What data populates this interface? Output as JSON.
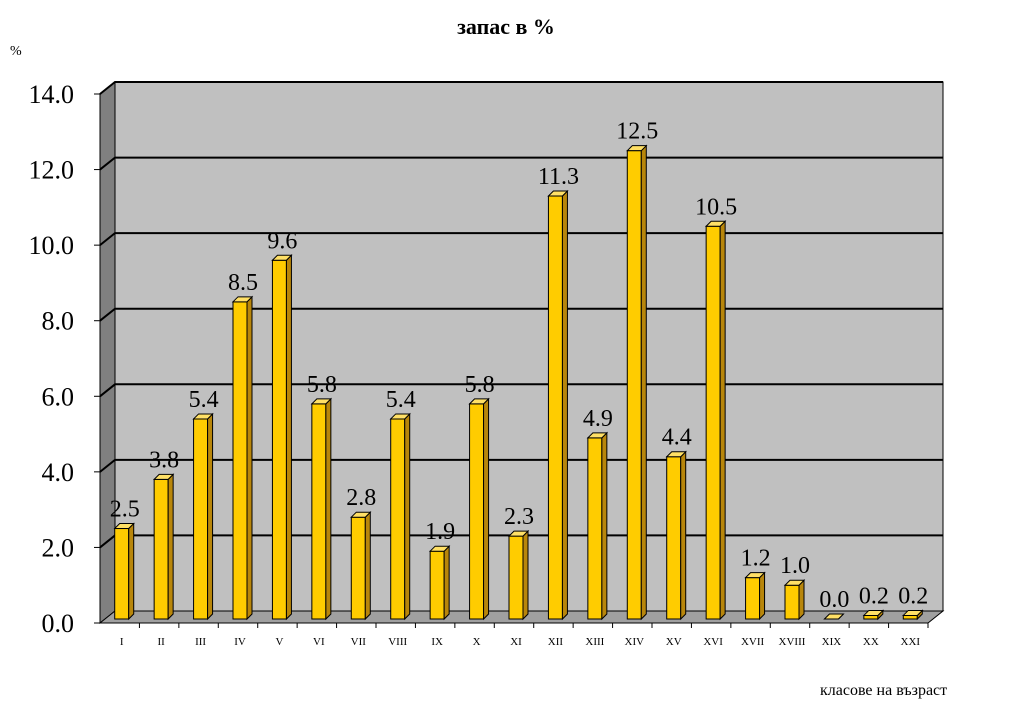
{
  "chart_data": {
    "type": "bar",
    "title": "запас в %",
    "ylabel": "%",
    "xlabel": "класове на възраст",
    "categories": [
      "I",
      "II",
      "III",
      "IV",
      "V",
      "VI",
      "VII",
      "VIII",
      "IX",
      "X",
      "XI",
      "XII",
      "XIII",
      "XIV",
      "XV",
      "XVI",
      "XVII",
      "XVIII",
      "XIX",
      "XX",
      "XXI"
    ],
    "values": [
      2.5,
      3.8,
      5.4,
      8.5,
      9.6,
      5.8,
      2.8,
      5.4,
      1.9,
      5.8,
      2.3,
      11.3,
      4.9,
      12.5,
      4.4,
      10.5,
      1.2,
      1.0,
      0.0,
      0.2,
      0.2
    ],
    "data_labels": [
      "2.5",
      "3.8",
      "5.4",
      "8.5",
      "9.6",
      "5.8",
      "2.8",
      "5.4",
      "1.9",
      "5.8",
      "2.3",
      "11.3",
      "4.9",
      "12.5",
      "4.4",
      "10.5",
      "1.2",
      "1.0",
      "0.0",
      "0.2",
      "0.2"
    ],
    "yticks": [
      "0.0",
      "2.0",
      "4.0",
      "6.0",
      "8.0",
      "10.0",
      "12.0",
      "14.0"
    ],
    "ylim": [
      0,
      14
    ],
    "grid": true,
    "colors": {
      "bar": "#FFCC00",
      "bar_side": "#B8860B",
      "plot_background": "#C0C0C0",
      "left_wall": "#808080",
      "floor": "#A0A0A0"
    }
  }
}
